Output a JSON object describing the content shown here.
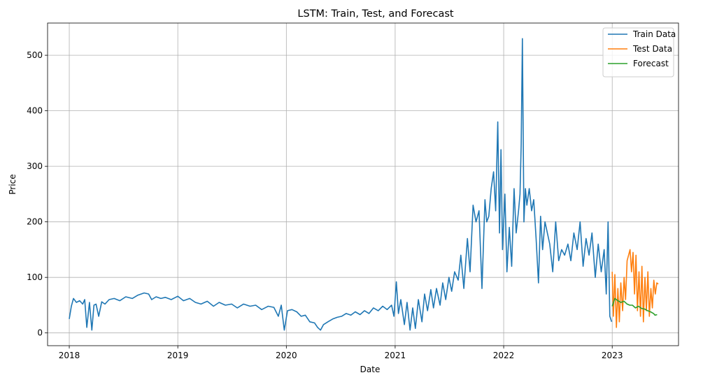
{
  "chart_data": {
    "type": "line",
    "title": "LSTM: Train, Test, and Forecast",
    "xlabel": "Date",
    "ylabel": "Price",
    "xlim": [
      "2017-10-20",
      "2023-08-12"
    ],
    "ylim": [
      -23,
      558
    ],
    "x_ticks": [
      "2018",
      "2019",
      "2020",
      "2021",
      "2022",
      "2023"
    ],
    "y_ticks": [
      0,
      100,
      200,
      300,
      400,
      500
    ],
    "grid": true,
    "legend_position": "top-right",
    "series": [
      {
        "name": "Train Data",
        "color": "#1f77b4",
        "x": [
          "2018-01-01",
          "2018-01-08",
          "2018-01-15",
          "2018-01-25",
          "2018-02-05",
          "2018-02-15",
          "2018-02-22",
          "2018-03-01",
          "2018-03-10",
          "2018-03-18",
          "2018-03-25",
          "2018-04-01",
          "2018-04-10",
          "2018-04-20",
          "2018-05-01",
          "2018-05-15",
          "2018-06-01",
          "2018-06-20",
          "2018-07-10",
          "2018-08-01",
          "2018-08-20",
          "2018-09-10",
          "2018-09-25",
          "2018-10-05",
          "2018-10-20",
          "2018-11-05",
          "2018-11-20",
          "2018-12-10",
          "2019-01-01",
          "2019-01-20",
          "2019-02-10",
          "2019-03-01",
          "2019-03-20",
          "2019-04-10",
          "2019-05-01",
          "2019-05-20",
          "2019-06-10",
          "2019-07-01",
          "2019-07-20",
          "2019-08-10",
          "2019-09-01",
          "2019-09-20",
          "2019-10-10",
          "2019-11-01",
          "2019-11-20",
          "2019-12-05",
          "2019-12-15",
          "2019-12-25",
          "2020-01-05",
          "2020-01-20",
          "2020-02-05",
          "2020-02-20",
          "2020-03-05",
          "2020-03-20",
          "2020-04-05",
          "2020-04-15",
          "2020-04-25",
          "2020-05-05",
          "2020-05-20",
          "2020-06-05",
          "2020-06-20",
          "2020-07-05",
          "2020-07-20",
          "2020-08-05",
          "2020-08-20",
          "2020-09-05",
          "2020-09-20",
          "2020-10-05",
          "2020-10-20",
          "2020-11-05",
          "2020-11-20",
          "2020-12-05",
          "2020-12-20",
          "2020-12-28",
          "2021-01-05",
          "2021-01-12",
          "2021-01-20",
          "2021-02-01",
          "2021-02-10",
          "2021-02-20",
          "2021-03-01",
          "2021-03-10",
          "2021-03-20",
          "2021-04-01",
          "2021-04-10",
          "2021-04-20",
          "2021-05-01",
          "2021-05-10",
          "2021-05-20",
          "2021-06-01",
          "2021-06-10",
          "2021-06-20",
          "2021-07-01",
          "2021-07-10",
          "2021-07-20",
          "2021-08-01",
          "2021-08-10",
          "2021-08-20",
          "2021-09-01",
          "2021-09-10",
          "2021-09-20",
          "2021-09-30",
          "2021-10-10",
          "2021-10-20",
          "2021-10-30",
          "2021-11-05",
          "2021-11-12",
          "2021-11-20",
          "2021-11-28",
          "2021-12-05",
          "2021-12-12",
          "2021-12-18",
          "2021-12-23",
          "2021-12-28",
          "2022-01-05",
          "2022-01-12",
          "2022-01-20",
          "2022-01-28",
          "2022-02-05",
          "2022-02-12",
          "2022-02-20",
          "2022-02-25",
          "2022-03-01",
          "2022-03-05",
          "2022-03-10",
          "2022-03-15",
          "2022-03-20",
          "2022-03-28",
          "2022-04-05",
          "2022-04-12",
          "2022-04-20",
          "2022-04-28",
          "2022-05-05",
          "2022-05-12",
          "2022-05-20",
          "2022-05-28",
          "2022-06-05",
          "2022-06-15",
          "2022-06-25",
          "2022-07-05",
          "2022-07-15",
          "2022-07-25",
          "2022-08-05",
          "2022-08-15",
          "2022-08-25",
          "2022-09-05",
          "2022-09-15",
          "2022-09-25",
          "2022-10-05",
          "2022-10-15",
          "2022-10-25",
          "2022-11-05",
          "2022-11-15",
          "2022-11-25",
          "2022-12-05",
          "2022-12-12",
          "2022-12-18",
          "2022-12-24",
          "2022-12-30"
        ],
        "y": [
          25,
          48,
          62,
          55,
          58,
          52,
          60,
          10,
          55,
          5,
          50,
          52,
          30,
          56,
          52,
          60,
          62,
          58,
          65,
          62,
          68,
          72,
          70,
          60,
          65,
          62,
          64,
          60,
          66,
          58,
          62,
          55,
          52,
          57,
          48,
          55,
          50,
          52,
          45,
          52,
          48,
          50,
          42,
          48,
          46,
          30,
          50,
          5,
          40,
          42,
          38,
          30,
          32,
          20,
          18,
          10,
          5,
          15,
          20,
          25,
          28,
          30,
          35,
          32,
          38,
          33,
          40,
          35,
          45,
          40,
          48,
          42,
          50,
          30,
          92,
          35,
          60,
          15,
          55,
          5,
          45,
          8,
          60,
          20,
          70,
          40,
          78,
          45,
          80,
          50,
          90,
          60,
          100,
          75,
          110,
          95,
          140,
          80,
          170,
          110,
          230,
          200,
          220,
          80,
          240,
          200,
          210,
          260,
          290,
          220,
          380,
          180,
          330,
          150,
          250,
          110,
          190,
          120,
          260,
          180,
          220,
          250,
          340,
          530,
          200,
          260,
          230,
          260,
          220,
          240,
          170,
          90,
          210,
          150,
          200,
          180,
          160,
          110,
          200,
          130,
          150,
          140,
          160,
          130,
          180,
          150,
          200,
          120,
          170,
          140,
          180,
          100,
          160,
          110,
          150,
          70,
          200,
          30,
          20
        ]
      },
      {
        "name": "Test Data",
        "color": "#ff7f0e",
        "x": [
          "2023-01-01",
          "2023-01-05",
          "2023-01-10",
          "2023-01-15",
          "2023-01-20",
          "2023-01-25",
          "2023-01-30",
          "2023-02-05",
          "2023-02-10",
          "2023-02-15",
          "2023-02-20",
          "2023-02-25",
          "2023-03-02",
          "2023-03-07",
          "2023-03-12",
          "2023-03-17",
          "2023-03-22",
          "2023-03-27",
          "2023-04-01",
          "2023-04-06",
          "2023-04-11",
          "2023-04-16",
          "2023-04-21",
          "2023-04-26",
          "2023-05-01",
          "2023-05-06",
          "2023-05-11",
          "2023-05-16",
          "2023-05-21",
          "2023-05-26",
          "2023-05-31",
          "2023-06-05"
        ],
        "y": [
          110,
          30,
          105,
          10,
          80,
          20,
          90,
          40,
          100,
          60,
          130,
          140,
          150,
          110,
          145,
          70,
          140,
          40,
          110,
          30,
          120,
          20,
          100,
          40,
          110,
          30,
          80,
          45,
          95,
          70,
          90,
          88
        ]
      },
      {
        "name": "Forecast",
        "color": "#2ca02c",
        "x": [
          "2023-01-01",
          "2023-01-10",
          "2023-01-20",
          "2023-01-30",
          "2023-02-10",
          "2023-02-20",
          "2023-03-01",
          "2023-03-10",
          "2023-03-20",
          "2023-03-30",
          "2023-04-10",
          "2023-04-20",
          "2023-04-30",
          "2023-05-10",
          "2023-05-20",
          "2023-05-25",
          "2023-06-01"
        ],
        "y": [
          48,
          62,
          58,
          55,
          57,
          52,
          50,
          50,
          45,
          48,
          44,
          43,
          40,
          38,
          35,
          32,
          33
        ]
      }
    ]
  }
}
